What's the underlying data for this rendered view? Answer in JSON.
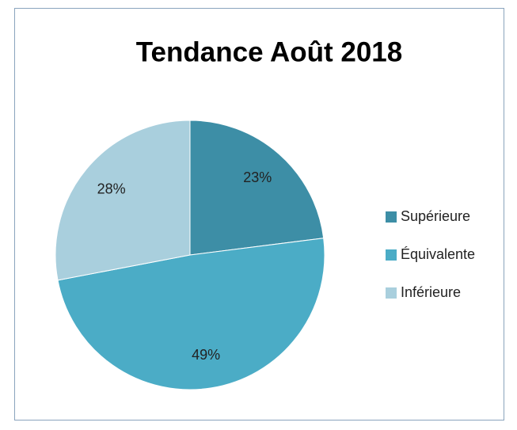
{
  "chart_data": {
    "type": "pie",
    "title": "Tendance Août 2018",
    "categories": [
      "Supérieure",
      "Équivalente",
      "Inférieure"
    ],
    "values": [
      23,
      49,
      28
    ],
    "value_labels": [
      "23%",
      "49%",
      "28%"
    ],
    "colors": [
      "#3d8ea6",
      "#4bacc6",
      "#a9cfdd"
    ],
    "legend": "right"
  }
}
